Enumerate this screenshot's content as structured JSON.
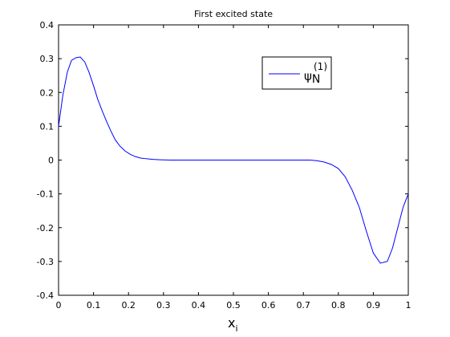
{
  "chart_data": {
    "type": "line",
    "title": "First excited state",
    "xlabel": "x",
    "xlabel_subscript": "i",
    "ylabel": "",
    "xlim": [
      0,
      1
    ],
    "ylim": [
      -0.4,
      0.4
    ],
    "xticks": [
      "0",
      "0.1",
      "0.2",
      "0.3",
      "0.4",
      "0.5",
      "0.6",
      "0.7",
      "0.8",
      "0.9",
      "1"
    ],
    "yticks": [
      "-0.4",
      "-0.3",
      "-0.2",
      "-0.1",
      "0",
      "0.1",
      "0.2",
      "0.3",
      "0.4"
    ],
    "grid": false,
    "legend_position": "top-right",
    "series": [
      {
        "name": "ψN(1)",
        "legend": {
          "base": "ψ",
          "subscript": "N",
          "superscript": "(1)"
        },
        "color": "#0000ff",
        "x": [
          0,
          0.012,
          0.025,
          0.037,
          0.05,
          0.062,
          0.075,
          0.087,
          0.1,
          0.112,
          0.125,
          0.137,
          0.15,
          0.162,
          0.175,
          0.19,
          0.205,
          0.22,
          0.235,
          0.25,
          0.27,
          0.29,
          0.32,
          0.36,
          0.4,
          0.45,
          0.5,
          0.55,
          0.6,
          0.65,
          0.7,
          0.72,
          0.74,
          0.76,
          0.78,
          0.8,
          0.82,
          0.84,
          0.86,
          0.88,
          0.9,
          0.92,
          0.94,
          0.955,
          0.97,
          0.985,
          1.0
        ],
        "y": [
          0.1,
          0.19,
          0.26,
          0.295,
          0.303,
          0.305,
          0.29,
          0.26,
          0.22,
          0.18,
          0.145,
          0.115,
          0.085,
          0.06,
          0.042,
          0.027,
          0.017,
          0.01,
          0.006,
          0.004,
          0.002,
          0.001,
          0.0,
          0.0,
          0.0,
          0.0,
          0.0,
          0.0,
          0.0,
          0.0,
          0.0,
          0.0,
          -0.002,
          -0.006,
          -0.013,
          -0.025,
          -0.05,
          -0.09,
          -0.14,
          -0.21,
          -0.275,
          -0.305,
          -0.3,
          -0.26,
          -0.2,
          -0.14,
          -0.1
        ]
      }
    ]
  }
}
